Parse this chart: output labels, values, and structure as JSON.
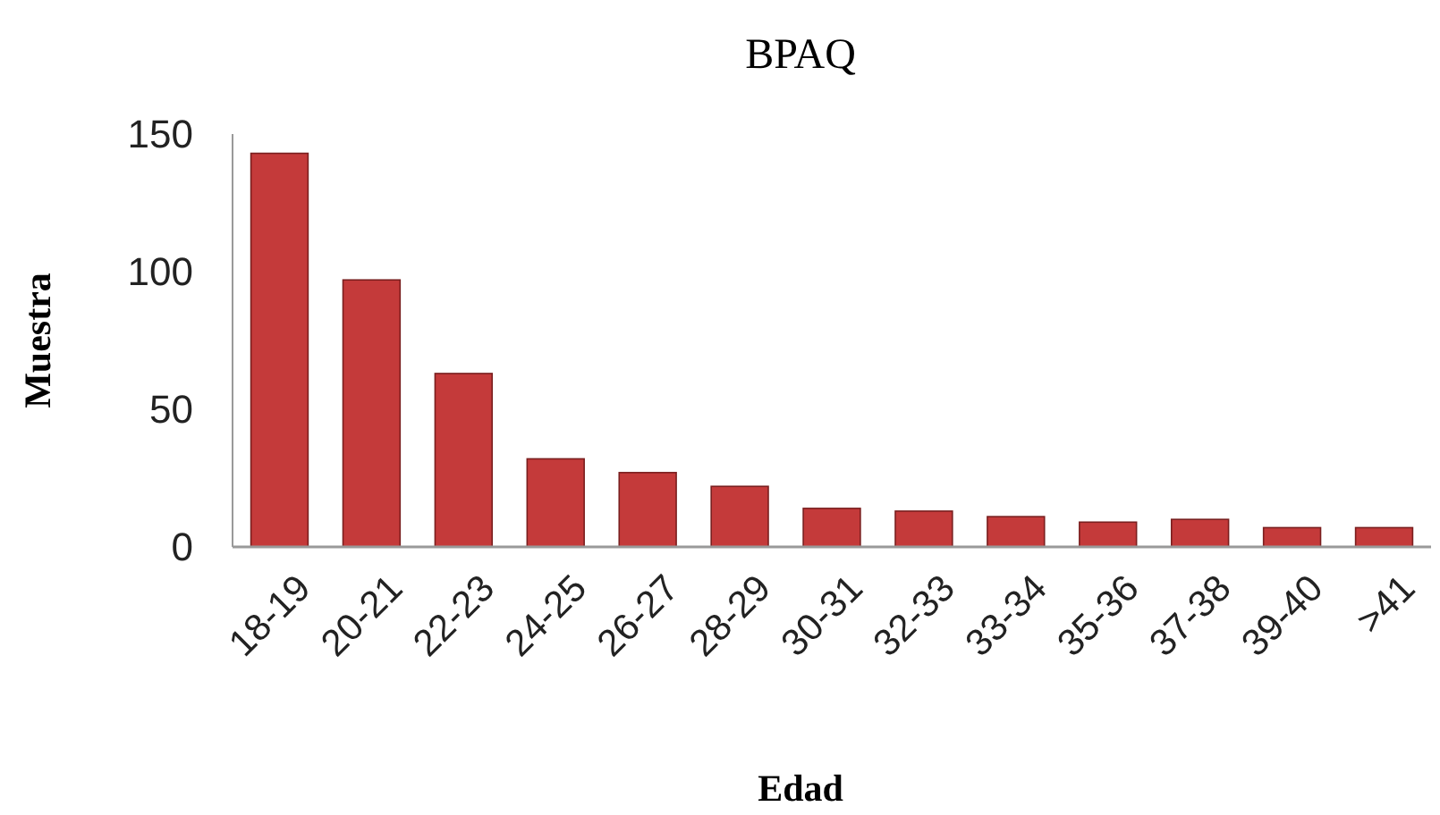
{
  "chart_data": {
    "type": "bar",
    "title": "BPAQ",
    "xlabel": "Edad",
    "ylabel": "Muestra",
    "categories": [
      "18-19",
      "20-21",
      "22-23",
      "24-25",
      "26-27",
      "28-29",
      "30-31",
      "32-33",
      "33-34",
      "35-36",
      "37-38",
      "39-40",
      ">41"
    ],
    "values": [
      143,
      97,
      63,
      32,
      27,
      22,
      14,
      13,
      11,
      9,
      10,
      7,
      7
    ],
    "color": "#c43a3a",
    "ylim": [
      0,
      150
    ],
    "yticks": [
      0,
      50,
      100,
      150
    ],
    "grid": false
  }
}
